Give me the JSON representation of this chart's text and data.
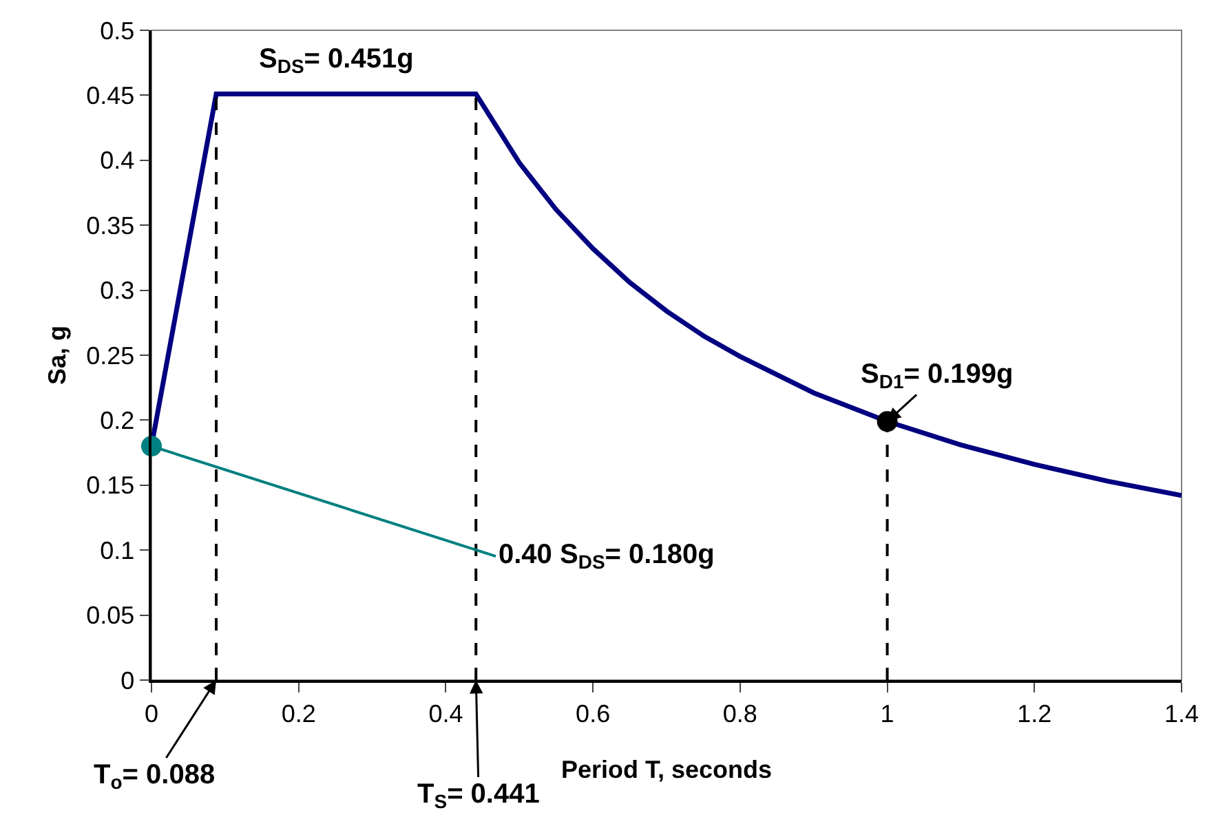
{
  "chart_data": {
    "type": "line",
    "xlabel": "Period T, seconds",
    "ylabel": "Sa, g",
    "xlim": [
      0,
      1.4
    ],
    "xticks": [
      0,
      0.2,
      0.4,
      0.6,
      0.8,
      1,
      1.2,
      1.4
    ],
    "ylim": [
      0,
      0.5
    ],
    "yticks": [
      0,
      0.05,
      0.1,
      0.15,
      0.2,
      0.25,
      0.3,
      0.35,
      0.4,
      0.45,
      0.5
    ],
    "grid": false,
    "series": [
      {
        "color": "#000080",
        "line_style": "solid",
        "marker": "none",
        "x": [
          0,
          0.088,
          0.441,
          0.5,
          0.55,
          0.6,
          0.65,
          0.7,
          0.75,
          0.8,
          0.9,
          1.0,
          1.1,
          1.2,
          1.3,
          1.4
        ],
        "values": [
          0.18,
          0.451,
          0.451,
          0.398,
          0.362,
          0.332,
          0.306,
          0.284,
          0.265,
          0.249,
          0.221,
          0.199,
          0.181,
          0.166,
          0.153,
          0.142
        ]
      },
      {
        "color": "#000000",
        "line_style": "dashed",
        "marker": "none",
        "x": [
          0.088,
          0.088
        ],
        "values": [
          0,
          0.451
        ]
      },
      {
        "color": "#000000",
        "line_style": "dashed",
        "marker": "none",
        "x": [
          0.441,
          0.441
        ],
        "values": [
          0,
          0.451
        ]
      },
      {
        "color": "#000000",
        "line_style": "dashed",
        "marker": "none",
        "x": [
          1.0,
          1.0
        ],
        "values": [
          0,
          0.199
        ]
      },
      {
        "type": "scatter",
        "color": "#008080",
        "marker": "circle",
        "x": [
          0
        ],
        "values": [
          0.18
        ]
      },
      {
        "type": "scatter",
        "color": "#000000",
        "marker": "circle",
        "x": [
          1.0
        ],
        "values": [
          0.199
        ]
      }
    ],
    "annotations": [
      {
        "text": "S$_{DS}$= 0.451g",
        "x": 0.25,
        "y": 0.451
      },
      {
        "text": "0.40 S$_{DS}$= 0.180g",
        "x": 0,
        "y": 0.18
      },
      {
        "text": "S$_{D1}$= 0.199g",
        "x": 1.0,
        "y": 0.199
      },
      {
        "text": "T$_{o}$= 0.088",
        "x": 0.088,
        "y": 0
      },
      {
        "text": "T$_{S}$= 0.441",
        "x": 0.441,
        "y": 0
      }
    ]
  }
}
